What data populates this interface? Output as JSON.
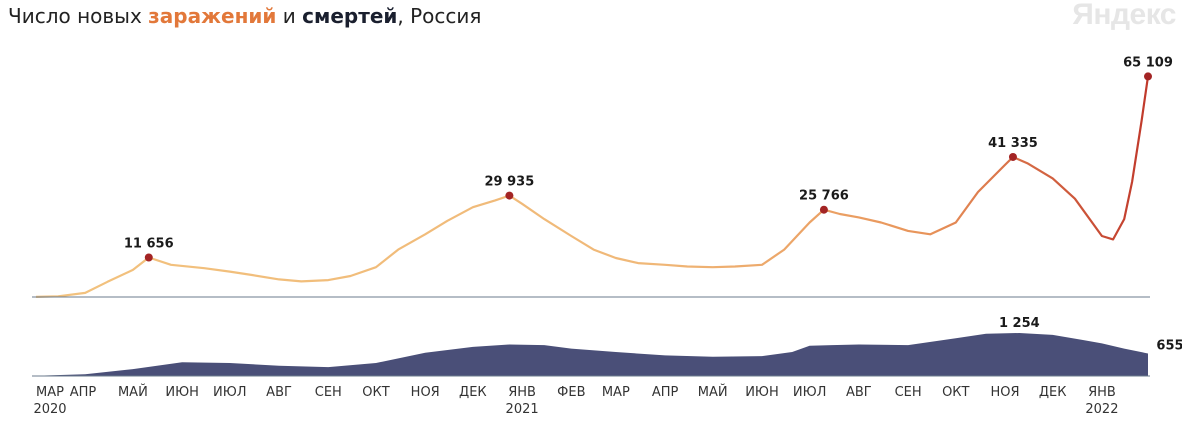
{
  "header": {
    "title_prefix": "Число новых ",
    "title_cases": "заражений",
    "title_mid": " и ",
    "title_deaths": "смертей",
    "title_suffix": ", Россия",
    "brand": "Яндекс"
  },
  "colors": {
    "cases_light": "#f2c27e",
    "cases_mid": "#e8945a",
    "cases_dark": "#c0392b",
    "peak_marker": "#a32424",
    "deaths_fill": "#4a4f78",
    "baseline": "#6b7b8c"
  },
  "chart_data": [
    {
      "type": "line",
      "series": [
        {
          "name": "заражений",
          "x": [
            "2020-03-01",
            "2020-03-15",
            "2020-04-01",
            "2020-04-15",
            "2020-05-01",
            "2020-05-11",
            "2020-05-25",
            "2020-06-15",
            "2020-07-01",
            "2020-07-15",
            "2020-08-01",
            "2020-08-15",
            "2020-09-01",
            "2020-09-15",
            "2020-10-01",
            "2020-10-15",
            "2020-11-01",
            "2020-11-15",
            "2020-12-01",
            "2020-12-15",
            "2020-12-24",
            "2021-01-01",
            "2021-01-15",
            "2021-02-01",
            "2021-02-15",
            "2021-03-01",
            "2021-03-15",
            "2021-04-01",
            "2021-04-15",
            "2021-05-01",
            "2021-05-15",
            "2021-06-01",
            "2021-06-15",
            "2021-07-01",
            "2021-07-10",
            "2021-07-20",
            "2021-08-01",
            "2021-08-15",
            "2021-09-01",
            "2021-09-15",
            "2021-10-01",
            "2021-10-15",
            "2021-11-01",
            "2021-11-06",
            "2021-11-15",
            "2021-12-01",
            "2021-12-15",
            "2022-01-01",
            "2022-01-08",
            "2022-01-15",
            "2022-01-20",
            "2022-01-26",
            "2022-01-30"
          ],
          "values": [
            40,
            200,
            1200,
            4500,
            8000,
            11656,
            9500,
            8500,
            7500,
            6500,
            5200,
            4600,
            5000,
            6200,
            8800,
            14000,
            18500,
            22500,
            26500,
            28500,
            29935,
            27500,
            23000,
            18000,
            14000,
            11500,
            10000,
            9500,
            9000,
            8800,
            9000,
            9500,
            14000,
            22000,
            25766,
            24500,
            23500,
            22000,
            19500,
            18500,
            22000,
            31000,
            39000,
            41335,
            39500,
            35000,
            29000,
            18000,
            17000,
            23000,
            34000,
            52000,
            65109
          ]
        }
      ],
      "peaks": [
        {
          "x": "2020-05-11",
          "value": 11656,
          "label": "11 656"
        },
        {
          "x": "2020-12-24",
          "value": 29935,
          "label": "29 935"
        },
        {
          "x": "2021-07-10",
          "value": 25766,
          "label": "25 766"
        },
        {
          "x": "2021-11-06",
          "value": 41335,
          "label": "41 335"
        },
        {
          "x": "2022-01-30",
          "value": 65109,
          "label": "65 109"
        }
      ],
      "ylim": [
        0,
        67000
      ],
      "grid": false
    },
    {
      "type": "area",
      "series": [
        {
          "name": "смертей",
          "x": [
            "2020-03-01",
            "2020-04-01",
            "2020-05-01",
            "2020-06-01",
            "2020-07-01",
            "2020-08-01",
            "2020-09-01",
            "2020-10-01",
            "2020-11-01",
            "2020-12-01",
            "2020-12-24",
            "2021-01-15",
            "2021-02-01",
            "2021-03-01",
            "2021-04-01",
            "2021-05-01",
            "2021-06-01",
            "2021-06-20",
            "2021-07-01",
            "2021-07-15",
            "2021-08-01",
            "2021-09-01",
            "2021-10-01",
            "2021-10-20",
            "2021-11-10",
            "2021-12-01",
            "2021-12-20",
            "2022-01-01",
            "2022-01-15",
            "2022-01-30"
          ],
          "values": [
            10,
            50,
            200,
            400,
            380,
            300,
            260,
            380,
            680,
            850,
            920,
            900,
            800,
            700,
            600,
            560,
            580,
            700,
            880,
            900,
            920,
            900,
            1100,
            1230,
            1254,
            1200,
            1050,
            950,
            800,
            655
          ]
        }
      ],
      "labels": [
        {
          "x": "2021-11-10",
          "value": 1254,
          "label": "1 254"
        },
        {
          "x": "2022-01-30",
          "value": 655,
          "label": "655"
        }
      ],
      "ylim": [
        0,
        1400
      ]
    }
  ],
  "axis": {
    "ticks": [
      {
        "date": "2020-03-01",
        "label": "МАР",
        "year": "2020"
      },
      {
        "date": "2020-04-01",
        "label": "АПР",
        "year": ""
      },
      {
        "date": "2020-05-01",
        "label": "МАЙ",
        "year": ""
      },
      {
        "date": "2020-06-01",
        "label": "ИЮН",
        "year": ""
      },
      {
        "date": "2020-07-01",
        "label": "ИЮЛ",
        "year": ""
      },
      {
        "date": "2020-08-01",
        "label": "АВГ",
        "year": ""
      },
      {
        "date": "2020-09-01",
        "label": "СЕН",
        "year": ""
      },
      {
        "date": "2020-10-01",
        "label": "ОКТ",
        "year": ""
      },
      {
        "date": "2020-11-01",
        "label": "НОЯ",
        "year": ""
      },
      {
        "date": "2020-12-01",
        "label": "ДЕК",
        "year": ""
      },
      {
        "date": "2021-01-01",
        "label": "ЯНВ",
        "year": "2021"
      },
      {
        "date": "2021-02-01",
        "label": "ФЕВ",
        "year": ""
      },
      {
        "date": "2021-03-01",
        "label": "МАР",
        "year": ""
      },
      {
        "date": "2021-04-01",
        "label": "АПР",
        "year": ""
      },
      {
        "date": "2021-05-01",
        "label": "МАЙ",
        "year": ""
      },
      {
        "date": "2021-06-01",
        "label": "ИЮН",
        "year": ""
      },
      {
        "date": "2021-07-01",
        "label": "ИЮЛ",
        "year": ""
      },
      {
        "date": "2021-08-01",
        "label": "АВГ",
        "year": ""
      },
      {
        "date": "2021-09-01",
        "label": "СЕН",
        "year": ""
      },
      {
        "date": "2021-10-01",
        "label": "ОКТ",
        "year": ""
      },
      {
        "date": "2021-11-01",
        "label": "НОЯ",
        "year": ""
      },
      {
        "date": "2021-12-01",
        "label": "ДЕК",
        "year": ""
      },
      {
        "date": "2022-01-01",
        "label": "ЯНВ",
        "year": "2022"
      }
    ]
  }
}
